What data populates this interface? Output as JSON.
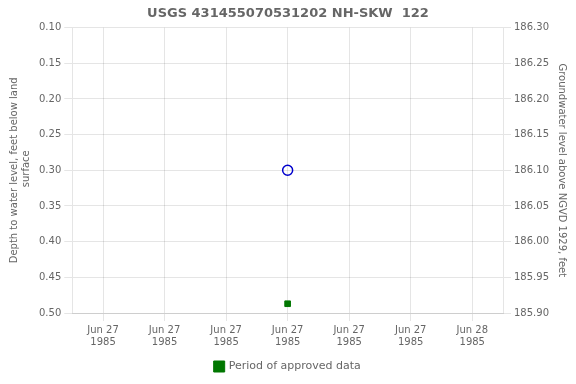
{
  "chart_data": {
    "type": "scatter",
    "title": "USGS 431455070531202 NH-SKW  122",
    "x_label": null,
    "y_label": "Depth to water level, feet below land\n surface",
    "y2_label": "Groundwater level above NGVD 1929, feet",
    "categories": [
      "Jun 27\n1985",
      "Jun 27\n1985",
      "Jun 27\n1985",
      "Jun 27\n1985",
      "Jun 27\n1985",
      "Jun 27\n1985",
      "Jun 28\n1985"
    ],
    "series": [
      {
        "color": "#0000cc",
        "marker": "open_circle",
        "values": [
          null,
          null,
          null,
          0.3,
          null,
          null,
          null
        ]
      },
      {
        "name": "Period of approved data",
        "color": "#007700",
        "marker": "square",
        "values": [
          null,
          null,
          null,
          0.487,
          null,
          null,
          null
        ]
      }
    ],
    "ylim": [
      0.5,
      0.1
    ],
    "yticks": [
      {
        "value": 0.1,
        "label": "0.10"
      },
      0.15,
      {
        "value": 0.2,
        "label": "0.20"
      },
      0.25,
      {
        "value": 0.3,
        "label": "0.30"
      },
      0.35,
      {
        "value": 0.4,
        "label": "0.40"
      },
      0.45,
      {
        "value": 0.5,
        "label": "0.50"
      }
    ],
    "y2lim": [
      185.9,
      186.3
    ],
    "y2ticks": [
      {
        "value": 186.3,
        "label": "186.30"
      },
      186.25,
      {
        "value": 186.2,
        "label": "186.20"
      },
      186.15,
      {
        "value": 186.1,
        "label": "186.10"
      },
      186.05,
      {
        "value": 186.0,
        "label": "186.00"
      },
      185.95,
      {
        "value": 185.9,
        "label": "185.90"
      }
    ],
    "grid": true,
    "legend": "bottom"
  }
}
